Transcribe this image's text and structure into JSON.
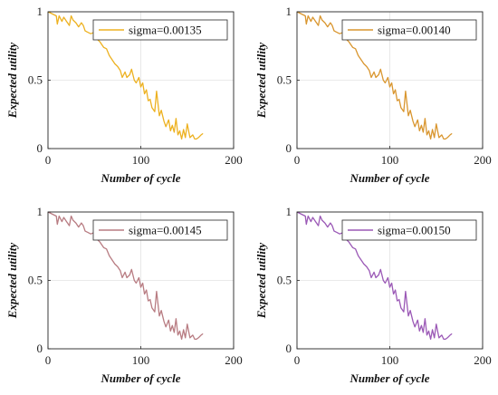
{
  "chart_data": [
    {
      "type": "line",
      "xlabel": "Number of cycle",
      "ylabel": "Expected utility",
      "xlim": [
        0,
        200
      ],
      "ylim": [
        0,
        1
      ],
      "xticks": [
        "0",
        "100",
        "200"
      ],
      "yticks": [
        "0",
        "0.5",
        "1"
      ],
      "grid": true,
      "legend": "top-right",
      "series": [
        {
          "name": "sigma=0.00135",
          "color": "#EDB120",
          "x": [
            0,
            3,
            6,
            9,
            10,
            12,
            15,
            17,
            20,
            23,
            25,
            27,
            30,
            33,
            36,
            38,
            40,
            43,
            46,
            50,
            53,
            56,
            60,
            63,
            66,
            70,
            72,
            75,
            78,
            80,
            83,
            85,
            88,
            90,
            93,
            95,
            98,
            100,
            102,
            104,
            106,
            108,
            110,
            112,
            115,
            117,
            120,
            122,
            125,
            127,
            130,
            132,
            134,
            136,
            138,
            140,
            142,
            144,
            146,
            148,
            150,
            153,
            156,
            158,
            160,
            162,
            165,
            167
          ],
          "y": [
            1.0,
            0.99,
            0.98,
            0.97,
            0.91,
            0.97,
            0.93,
            0.96,
            0.93,
            0.9,
            0.97,
            0.94,
            0.92,
            0.89,
            0.92,
            0.9,
            0.86,
            0.85,
            0.84,
            0.85,
            0.8,
            0.78,
            0.74,
            0.73,
            0.68,
            0.64,
            0.62,
            0.6,
            0.57,
            0.52,
            0.56,
            0.52,
            0.54,
            0.58,
            0.5,
            0.48,
            0.52,
            0.45,
            0.48,
            0.4,
            0.43,
            0.35,
            0.36,
            0.3,
            0.27,
            0.42,
            0.24,
            0.28,
            0.2,
            0.16,
            0.21,
            0.13,
            0.17,
            0.12,
            0.22,
            0.1,
            0.13,
            0.07,
            0.14,
            0.08,
            0.18,
            0.08,
            0.1,
            0.07,
            0.07,
            0.08,
            0.1,
            0.11
          ]
        },
        {
          "name": "sigma=0.00140",
          "color": "#D9962F",
          "x": [
            0,
            3,
            6,
            9,
            10,
            12,
            15,
            17,
            20,
            23,
            25,
            27,
            30,
            33,
            36,
            38,
            40,
            43,
            46,
            50,
            53,
            56,
            60,
            63,
            66,
            70,
            72,
            75,
            78,
            80,
            83,
            85,
            88,
            90,
            93,
            95,
            98,
            100,
            102,
            104,
            106,
            108,
            110,
            112,
            115,
            117,
            120,
            122,
            125,
            127,
            130,
            132,
            134,
            136,
            138,
            140,
            142,
            144,
            146,
            148,
            150,
            153,
            156,
            158,
            160,
            162,
            165,
            167
          ],
          "y": [
            1.0,
            0.99,
            0.98,
            0.97,
            0.91,
            0.97,
            0.93,
            0.96,
            0.93,
            0.9,
            0.97,
            0.94,
            0.92,
            0.89,
            0.92,
            0.9,
            0.86,
            0.85,
            0.84,
            0.85,
            0.8,
            0.78,
            0.74,
            0.73,
            0.68,
            0.64,
            0.62,
            0.6,
            0.57,
            0.52,
            0.56,
            0.52,
            0.54,
            0.58,
            0.5,
            0.48,
            0.52,
            0.45,
            0.48,
            0.4,
            0.43,
            0.35,
            0.36,
            0.3,
            0.27,
            0.42,
            0.24,
            0.28,
            0.2,
            0.16,
            0.21,
            0.13,
            0.17,
            0.12,
            0.22,
            0.1,
            0.13,
            0.07,
            0.14,
            0.08,
            0.18,
            0.08,
            0.1,
            0.07,
            0.07,
            0.08,
            0.1,
            0.11
          ]
        },
        {
          "name": "sigma=0.00145",
          "color": "#B87C82",
          "x": [
            0,
            3,
            6,
            9,
            10,
            12,
            15,
            17,
            20,
            23,
            25,
            27,
            30,
            33,
            36,
            38,
            40,
            43,
            46,
            50,
            53,
            56,
            60,
            63,
            66,
            70,
            72,
            75,
            78,
            80,
            83,
            85,
            88,
            90,
            93,
            95,
            98,
            100,
            102,
            104,
            106,
            108,
            110,
            112,
            115,
            117,
            120,
            122,
            125,
            127,
            130,
            132,
            134,
            136,
            138,
            140,
            142,
            144,
            146,
            148,
            150,
            153,
            156,
            158,
            160,
            162,
            165,
            167
          ],
          "y": [
            1.0,
            0.99,
            0.98,
            0.97,
            0.91,
            0.97,
            0.93,
            0.96,
            0.93,
            0.9,
            0.97,
            0.94,
            0.92,
            0.89,
            0.92,
            0.9,
            0.86,
            0.85,
            0.84,
            0.85,
            0.8,
            0.78,
            0.74,
            0.73,
            0.68,
            0.64,
            0.62,
            0.6,
            0.57,
            0.52,
            0.56,
            0.52,
            0.54,
            0.58,
            0.5,
            0.48,
            0.52,
            0.45,
            0.48,
            0.4,
            0.43,
            0.35,
            0.36,
            0.3,
            0.27,
            0.42,
            0.24,
            0.28,
            0.2,
            0.16,
            0.21,
            0.13,
            0.17,
            0.12,
            0.22,
            0.1,
            0.13,
            0.07,
            0.14,
            0.08,
            0.18,
            0.08,
            0.1,
            0.07,
            0.07,
            0.08,
            0.1,
            0.11
          ]
        },
        {
          "name": "sigma=0.00150",
          "color": "#9B59B6",
          "x": [
            0,
            3,
            6,
            9,
            10,
            12,
            15,
            17,
            20,
            23,
            25,
            27,
            30,
            33,
            36,
            38,
            40,
            43,
            46,
            50,
            53,
            56,
            60,
            63,
            66,
            70,
            72,
            75,
            78,
            80,
            83,
            85,
            88,
            90,
            93,
            95,
            98,
            100,
            102,
            104,
            106,
            108,
            110,
            112,
            115,
            117,
            120,
            122,
            125,
            127,
            130,
            132,
            134,
            136,
            138,
            140,
            142,
            144,
            146,
            148,
            150,
            153,
            156,
            158,
            160,
            162,
            165,
            167
          ],
          "y": [
            1.0,
            0.99,
            0.98,
            0.97,
            0.91,
            0.97,
            0.93,
            0.96,
            0.93,
            0.9,
            0.97,
            0.94,
            0.92,
            0.89,
            0.92,
            0.9,
            0.86,
            0.85,
            0.84,
            0.85,
            0.8,
            0.78,
            0.74,
            0.73,
            0.68,
            0.64,
            0.62,
            0.6,
            0.57,
            0.52,
            0.56,
            0.52,
            0.54,
            0.58,
            0.5,
            0.48,
            0.52,
            0.45,
            0.48,
            0.4,
            0.43,
            0.35,
            0.36,
            0.3,
            0.27,
            0.42,
            0.24,
            0.28,
            0.2,
            0.16,
            0.21,
            0.13,
            0.17,
            0.12,
            0.22,
            0.1,
            0.13,
            0.07,
            0.14,
            0.08,
            0.18,
            0.08,
            0.1,
            0.07,
            0.07,
            0.08,
            0.1,
            0.11
          ]
        }
      ]
    }
  ]
}
